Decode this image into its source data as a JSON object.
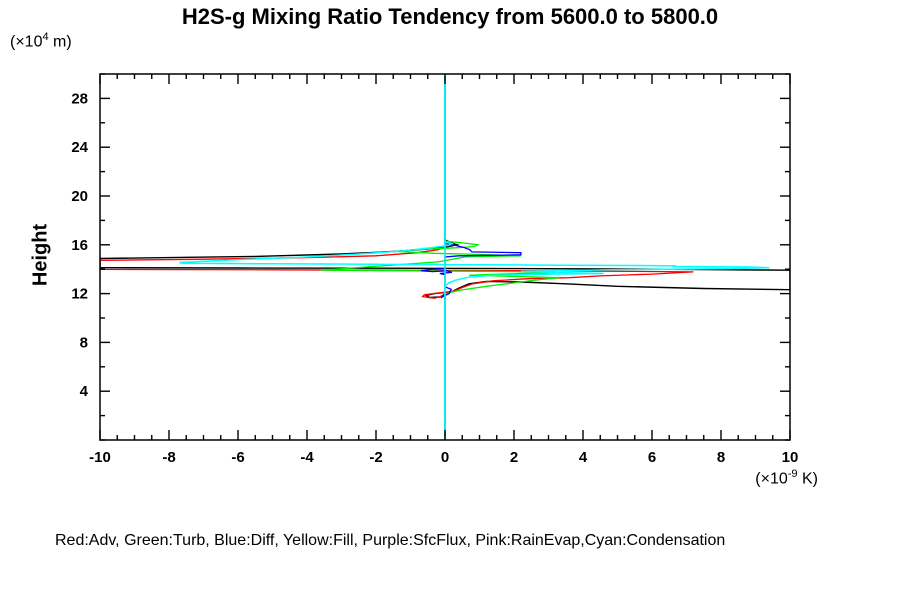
{
  "title": "H2S-g Mixing Ratio Tendency from 5600.0 to 5800.0",
  "y_axis_title": "Height",
  "y_unit": {
    "pre": "(×10",
    "sup": "4",
    "post": " m)"
  },
  "x_unit": {
    "pre": "(×10",
    "sup": "-9",
    "post": " K)"
  },
  "legend_text": "Red:Adv, Green:Turb, Blue:Diff, Yellow:Fill, Purple:SfcFlux, Pink:RainEvap,Cyan:Condensation",
  "colors": {
    "red": "#ff0000",
    "green": "#00ee00",
    "blue": "#0000ff",
    "yellow": "#ffff00",
    "purple": "#a020f0",
    "pink": "#ff9ec6",
    "cyan": "#00ffff",
    "black": "#000000",
    "axis": "#000000",
    "background": "#ffffff"
  },
  "chart_data": {
    "type": "line",
    "title": "H2S-g Mixing Ratio Tendency from 5600.0 to 5800.0",
    "xlabel": "(x10^-9 K)",
    "ylabel": "Height (x10^4 m)",
    "xlim": [
      -10,
      10
    ],
    "ylim": [
      0,
      30
    ],
    "x_major_ticks": [
      -10,
      -8,
      -6,
      -4,
      -2,
      0,
      2,
      4,
      6,
      8,
      10
    ],
    "x_tick_labels": [
      "-10",
      "-8",
      "-6",
      "-4",
      "-2",
      "0",
      "2",
      "4",
      "6",
      "8",
      "10"
    ],
    "x_minor_step": 0.5,
    "y_major_ticks": [
      4,
      8,
      12,
      16,
      20,
      24,
      28
    ],
    "y_tick_labels": [
      "4",
      "8",
      "12",
      "16",
      "20",
      "24",
      "28"
    ],
    "y_minor_step": 2,
    "grid": false,
    "legend_position": "bottom",
    "legend_entries": [
      {
        "color_name": "Red",
        "label": "Adv"
      },
      {
        "color_name": "Green",
        "label": "Turb"
      },
      {
        "color_name": "Blue",
        "label": "Diff"
      },
      {
        "color_name": "Yellow",
        "label": "Fill"
      },
      {
        "color_name": "Purple",
        "label": "SfcFlux"
      },
      {
        "color_name": "Pink",
        "label": "RainEvap"
      },
      {
        "color_name": "Cyan",
        "label": "Condensation"
      }
    ],
    "zero_line": {
      "x": 0,
      "color": "cyan"
    },
    "series": [
      {
        "name": "Fill",
        "color": "yellow",
        "width": 1.2,
        "points": [
          [
            0,
            29.8
          ],
          [
            0,
            0.2
          ]
        ]
      },
      {
        "name": "SfcFlux",
        "color": "purple",
        "width": 1.2,
        "points": [
          [
            0,
            29.8
          ],
          [
            0,
            0.2
          ]
        ]
      },
      {
        "name": "RainEvap",
        "color": "pink",
        "width": 1.2,
        "points": [
          [
            0,
            29.8
          ],
          [
            0,
            0.2
          ]
        ]
      },
      {
        "name": "black-unlabeled-total",
        "color": "black",
        "width": 1.4,
        "points": [
          [
            0,
            29.8
          ],
          [
            0,
            16.4
          ],
          [
            0.2,
            16.15
          ],
          [
            0.35,
            16.0
          ],
          [
            0.1,
            15.85
          ],
          [
            -0.5,
            15.65
          ],
          [
            -1.5,
            15.45
          ],
          [
            -3,
            15.25
          ],
          [
            -5.5,
            15.05
          ],
          [
            -8,
            14.95
          ],
          [
            -10,
            14.88
          ],
          [
            -10,
            14.12
          ],
          [
            -6,
            14.1
          ],
          [
            -2,
            14.08
          ],
          [
            2,
            14.05
          ],
          [
            6,
            14.0
          ],
          [
            10,
            13.92
          ],
          [
            10,
            12.32
          ],
          [
            7.5,
            12.42
          ],
          [
            5,
            12.6
          ],
          [
            3.5,
            12.8
          ],
          [
            2.2,
            12.95
          ],
          [
            1.2,
            13.0
          ],
          [
            0.7,
            12.8
          ],
          [
            0.4,
            12.45
          ],
          [
            0.2,
            12.15
          ],
          [
            -0.3,
            12.0
          ],
          [
            -0.55,
            11.85
          ],
          [
            -0.45,
            11.68
          ],
          [
            -0.15,
            11.72
          ],
          [
            0,
            11.95
          ],
          [
            0,
            0.2
          ]
        ]
      },
      {
        "name": "Adv",
        "color": "red",
        "width": 1.3,
        "points": [
          [
            0,
            29.8
          ],
          [
            0,
            16.3
          ],
          [
            0,
            15.85
          ],
          [
            -0.2,
            15.6
          ],
          [
            -0.8,
            15.35
          ],
          [
            -2,
            15.1
          ],
          [
            -4,
            14.95
          ],
          [
            -7,
            14.82
          ],
          [
            -10,
            14.72
          ],
          [
            -10,
            13.98
          ],
          [
            -5,
            13.95
          ],
          [
            0,
            13.9
          ],
          [
            3,
            13.86
          ],
          [
            5.5,
            13.82
          ],
          [
            7.2,
            13.78
          ],
          [
            6,
            13.6
          ],
          [
            4.5,
            13.45
          ],
          [
            3.6,
            13.3
          ],
          [
            2.4,
            13.22
          ],
          [
            1.4,
            13.05
          ],
          [
            0.8,
            12.8
          ],
          [
            0.5,
            12.5
          ],
          [
            0.25,
            12.2
          ],
          [
            -0.2,
            12.05
          ],
          [
            -0.6,
            11.9
          ],
          [
            -0.65,
            11.75
          ],
          [
            -0.3,
            11.62
          ],
          [
            0,
            11.88
          ],
          [
            0,
            0.2
          ]
        ]
      },
      {
        "name": "Turb",
        "color": "green",
        "width": 1.3,
        "points": [
          [
            0,
            29.8
          ],
          [
            0,
            16.3
          ],
          [
            0.55,
            16.15
          ],
          [
            0.95,
            16.0
          ],
          [
            0.85,
            15.85
          ],
          [
            0.3,
            15.75
          ],
          [
            -0.9,
            15.6
          ],
          [
            -1.4,
            15.45
          ],
          [
            -0.3,
            15.3
          ],
          [
            1.2,
            15.2
          ],
          [
            2.2,
            15.1
          ],
          [
            0.6,
            15.02
          ],
          [
            -0.2,
            14.6
          ],
          [
            -3.6,
            13.92
          ],
          [
            -1.5,
            13.88
          ],
          [
            0.5,
            13.84
          ],
          [
            2,
            13.8
          ],
          [
            3.2,
            13.72
          ],
          [
            1.6,
            13.6
          ],
          [
            0.7,
            13.5
          ],
          [
            1.9,
            13.42
          ],
          [
            3.3,
            13.3
          ],
          [
            2.6,
            13.1
          ],
          [
            2.2,
            12.95
          ],
          [
            1.2,
            12.6
          ],
          [
            0.5,
            12.3
          ],
          [
            0.15,
            12.1
          ],
          [
            0,
            11.95
          ],
          [
            0,
            0.2
          ]
        ]
      },
      {
        "name": "Diff",
        "color": "blue",
        "width": 1.3,
        "points": [
          [
            0,
            29.8
          ],
          [
            0,
            16.1
          ],
          [
            0.3,
            15.95
          ],
          [
            0.55,
            15.78
          ],
          [
            0.72,
            15.6
          ],
          [
            0.78,
            15.42
          ],
          [
            2.2,
            15.35
          ],
          [
            2.2,
            15.18
          ],
          [
            0.4,
            15.1
          ],
          [
            0,
            15.0
          ],
          [
            0,
            14.05
          ],
          [
            -0.45,
            13.98
          ],
          [
            -0.7,
            13.88
          ],
          [
            -0.35,
            13.8
          ],
          [
            0.05,
            13.88
          ],
          [
            0.2,
            13.75
          ],
          [
            -0.15,
            13.65
          ],
          [
            0,
            13.55
          ],
          [
            0,
            12.55
          ],
          [
            0.18,
            12.35
          ],
          [
            0.12,
            12.0
          ],
          [
            -0.05,
            11.78
          ],
          [
            -0.12,
            11.65
          ],
          [
            0,
            11.9
          ],
          [
            0,
            0.2
          ]
        ]
      },
      {
        "name": "Condensation",
        "color": "cyan",
        "width": 1.5,
        "points": [
          [
            0,
            29.8
          ],
          [
            0,
            16.25
          ],
          [
            0.2,
            16.1
          ],
          [
            0.1,
            15.95
          ],
          [
            -0.4,
            15.75
          ],
          [
            -1.2,
            15.5
          ],
          [
            -2.5,
            15.25
          ],
          [
            -4,
            15.0
          ],
          [
            -5.8,
            14.8
          ],
          [
            -7.2,
            14.62
          ],
          [
            -7.7,
            14.55
          ],
          [
            -7.6,
            14.48
          ],
          [
            -5,
            14.44
          ],
          [
            -2,
            14.4
          ],
          [
            1,
            14.37
          ],
          [
            3.5,
            14.33
          ],
          [
            5.5,
            14.3
          ],
          [
            6.7,
            14.27
          ],
          [
            6.6,
            14.22
          ],
          [
            8.8,
            14.18
          ],
          [
            9.4,
            14.12
          ],
          [
            8.2,
            14.05
          ],
          [
            6.5,
            14.0
          ],
          [
            4.8,
            13.95
          ],
          [
            3.4,
            13.88
          ],
          [
            2.2,
            13.82
          ],
          [
            3.4,
            13.72
          ],
          [
            4.6,
            13.65
          ],
          [
            2.8,
            13.58
          ],
          [
            1.4,
            13.5
          ],
          [
            0.7,
            13.35
          ],
          [
            0.3,
            13.1
          ],
          [
            0.1,
            12.85
          ],
          [
            0,
            12.6
          ],
          [
            0,
            0.2
          ]
        ]
      }
    ]
  }
}
